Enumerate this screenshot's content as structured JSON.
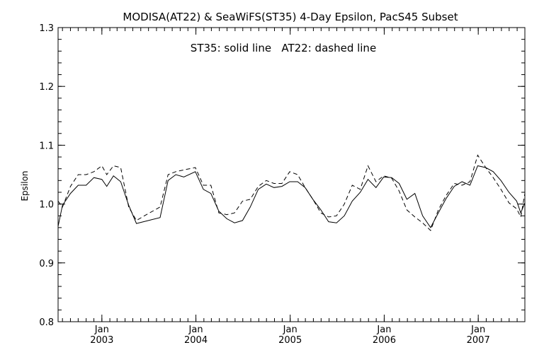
{
  "chart_data": {
    "type": "line",
    "title": "MODISA(AT22) & SeaWiFS(ST35) 4-Day Epsilon, PacS45 Subset",
    "annotation": "ST35: solid line   AT22: dashed line",
    "xlabel": "",
    "ylabel": "Epsilon",
    "xlim": [
      "2002-07-15",
      "2007-07-01"
    ],
    "ylim": [
      0.8,
      1.3
    ],
    "y_ticks": [
      "0.8",
      "0.9",
      "1.0",
      "1.1",
      "1.2",
      "1.3"
    ],
    "x_ticks": [
      {
        "date": "2003-01-01",
        "month": "Jan",
        "year": "2003"
      },
      {
        "date": "2004-01-01",
        "month": "Jan",
        "year": "2004"
      },
      {
        "date": "2005-01-01",
        "month": "Jan",
        "year": "2005"
      },
      {
        "date": "2006-01-01",
        "month": "Jan",
        "year": "2006"
      },
      {
        "date": "2007-01-01",
        "month": "Jan",
        "year": "2007"
      }
    ],
    "grid": false,
    "series": [
      {
        "name": "ST35",
        "style": "solid",
        "points": [
          [
            "2002-07-15",
            0.962
          ],
          [
            "2002-08-01",
            0.998
          ],
          [
            "2002-09-01",
            1.018
          ],
          [
            "2002-10-01",
            1.032
          ],
          [
            "2002-11-01",
            1.032
          ],
          [
            "2002-12-01",
            1.045
          ],
          [
            "2003-01-01",
            1.042
          ],
          [
            "2003-01-20",
            1.03
          ],
          [
            "2003-02-15",
            1.048
          ],
          [
            "2003-03-15",
            1.038
          ],
          [
            "2003-04-15",
            0.998
          ],
          [
            "2003-05-15",
            0.967
          ],
          [
            "2003-08-15",
            0.977
          ],
          [
            "2003-09-15",
            1.04
          ],
          [
            "2003-10-15",
            1.05
          ],
          [
            "2003-11-15",
            1.046
          ],
          [
            "2003-12-30",
            1.055
          ],
          [
            "2004-01-30",
            1.025
          ],
          [
            "2004-02-28",
            1.018
          ],
          [
            "2004-03-30",
            0.988
          ],
          [
            "2004-04-30",
            0.975
          ],
          [
            "2004-05-30",
            0.968
          ],
          [
            "2004-06-30",
            0.972
          ],
          [
            "2004-07-30",
            0.995
          ],
          [
            "2004-08-30",
            1.025
          ],
          [
            "2004-09-30",
            1.034
          ],
          [
            "2004-10-30",
            1.028
          ],
          [
            "2004-11-30",
            1.03
          ],
          [
            "2004-12-30",
            1.038
          ],
          [
            "2005-01-30",
            1.038
          ],
          [
            "2005-02-28",
            1.028
          ],
          [
            "2005-03-30",
            1.008
          ],
          [
            "2005-04-30",
            0.99
          ],
          [
            "2005-05-30",
            0.97
          ],
          [
            "2005-06-30",
            0.968
          ],
          [
            "2005-07-30",
            0.98
          ],
          [
            "2005-08-30",
            1.005
          ],
          [
            "2005-09-30",
            1.02
          ],
          [
            "2005-10-30",
            1.042
          ],
          [
            "2005-11-30",
            1.028
          ],
          [
            "2005-12-30",
            1.046
          ],
          [
            "2006-01-30",
            1.045
          ],
          [
            "2006-02-28",
            1.035
          ],
          [
            "2006-03-30",
            1.008
          ],
          [
            "2006-04-30",
            1.018
          ],
          [
            "2006-05-30",
            0.98
          ],
          [
            "2006-06-30",
            0.96
          ],
          [
            "2006-07-30",
            0.985
          ],
          [
            "2006-08-30",
            1.01
          ],
          [
            "2006-09-30",
            1.03
          ],
          [
            "2006-10-30",
            1.038
          ],
          [
            "2006-11-30",
            1.032
          ],
          [
            "2006-12-30",
            1.065
          ],
          [
            "2007-01-30",
            1.062
          ],
          [
            "2007-02-28",
            1.055
          ],
          [
            "2007-03-30",
            1.04
          ],
          [
            "2007-04-30",
            1.02
          ],
          [
            "2007-05-30",
            1.005
          ],
          [
            "2007-06-15",
            0.985
          ],
          [
            "2007-07-01",
            1.002
          ]
        ]
      },
      {
        "name": "AT22",
        "style": "dashed",
        "points": [
          [
            "2002-07-15",
            1.005
          ],
          [
            "2002-08-01",
            0.995
          ],
          [
            "2002-09-01",
            1.03
          ],
          [
            "2002-10-01",
            1.05
          ],
          [
            "2002-11-01",
            1.05
          ],
          [
            "2002-12-01",
            1.055
          ],
          [
            "2003-01-01",
            1.065
          ],
          [
            "2003-01-20",
            1.05
          ],
          [
            "2003-02-15",
            1.065
          ],
          [
            "2003-03-15",
            1.062
          ],
          [
            "2003-04-15",
            0.995
          ],
          [
            "2003-05-15",
            0.972
          ],
          [
            "2003-06-15",
            0.98
          ],
          [
            "2003-08-15",
            0.995
          ],
          [
            "2003-09-15",
            1.05
          ],
          [
            "2003-10-15",
            1.055
          ],
          [
            "2003-11-15",
            1.058
          ],
          [
            "2003-12-30",
            1.062
          ],
          [
            "2004-01-30",
            1.032
          ],
          [
            "2004-02-28",
            1.032
          ],
          [
            "2004-03-30",
            0.985
          ],
          [
            "2004-04-30",
            0.982
          ],
          [
            "2004-05-30",
            0.985
          ],
          [
            "2004-06-30",
            1.005
          ],
          [
            "2004-07-30",
            1.008
          ],
          [
            "2004-08-30",
            1.03
          ],
          [
            "2004-09-30",
            1.04
          ],
          [
            "2004-10-30",
            1.035
          ],
          [
            "2004-11-30",
            1.035
          ],
          [
            "2004-12-30",
            1.055
          ],
          [
            "2005-01-30",
            1.05
          ],
          [
            "2005-02-28",
            1.028
          ],
          [
            "2005-03-30",
            1.008
          ],
          [
            "2005-04-30",
            0.985
          ],
          [
            "2005-05-30",
            0.978
          ],
          [
            "2005-06-30",
            0.98
          ],
          [
            "2005-07-30",
            1.0
          ],
          [
            "2005-08-30",
            1.032
          ],
          [
            "2005-09-30",
            1.025
          ],
          [
            "2005-10-30",
            1.065
          ],
          [
            "2005-11-30",
            1.038
          ],
          [
            "2005-12-30",
            1.048
          ],
          [
            "2006-01-30",
            1.044
          ],
          [
            "2006-02-28",
            1.022
          ],
          [
            "2006-03-30",
            0.99
          ],
          [
            "2006-04-30",
            0.978
          ],
          [
            "2006-05-30",
            0.968
          ],
          [
            "2006-06-30",
            0.955
          ],
          [
            "2006-07-30",
            0.99
          ],
          [
            "2006-08-30",
            1.015
          ],
          [
            "2006-09-30",
            1.035
          ],
          [
            "2006-10-30",
            1.032
          ],
          [
            "2006-11-30",
            1.038
          ],
          [
            "2006-12-30",
            1.083
          ],
          [
            "2007-01-30",
            1.062
          ],
          [
            "2007-02-28",
            1.045
          ],
          [
            "2007-03-30",
            1.025
          ],
          [
            "2007-04-30",
            1.002
          ],
          [
            "2007-05-30",
            0.992
          ],
          [
            "2007-06-15",
            0.978
          ],
          [
            "2007-07-01",
            1.018
          ]
        ]
      }
    ]
  }
}
